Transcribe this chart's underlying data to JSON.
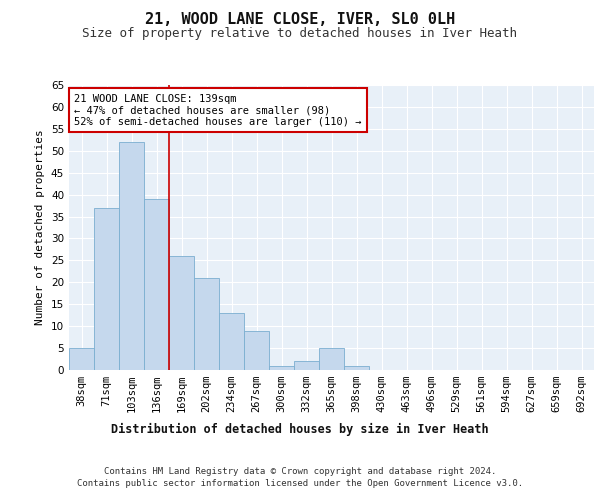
{
  "title": "21, WOOD LANE CLOSE, IVER, SL0 0LH",
  "subtitle": "Size of property relative to detached houses in Iver Heath",
  "xlabel_dist": "Distribution of detached houses by size in Iver Heath",
  "ylabel": "Number of detached properties",
  "footer_line1": "Contains HM Land Registry data © Crown copyright and database right 2024.",
  "footer_line2": "Contains public sector information licensed under the Open Government Licence v3.0.",
  "bar_labels": [
    "38sqm",
    "71sqm",
    "103sqm",
    "136sqm",
    "169sqm",
    "202sqm",
    "234sqm",
    "267sqm",
    "300sqm",
    "332sqm",
    "365sqm",
    "398sqm",
    "430sqm",
    "463sqm",
    "496sqm",
    "529sqm",
    "561sqm",
    "594sqm",
    "627sqm",
    "659sqm",
    "692sqm"
  ],
  "bar_values": [
    5,
    37,
    52,
    39,
    26,
    21,
    13,
    9,
    1,
    2,
    5,
    1,
    0,
    0,
    0,
    0,
    0,
    0,
    0,
    0,
    0
  ],
  "bar_color": "#c5d8ed",
  "bar_edge_color": "#7aaed0",
  "background_color": "#e8f0f8",
  "vline_x_index": 3,
  "vline_color": "#cc0000",
  "annotation_text": "21 WOOD LANE CLOSE: 139sqm\n← 47% of detached houses are smaller (98)\n52% of semi-detached houses are larger (110) →",
  "annotation_box_color": "#cc0000",
  "ylim": [
    0,
    65
  ],
  "yticks": [
    0,
    5,
    10,
    15,
    20,
    25,
    30,
    35,
    40,
    45,
    50,
    55,
    60,
    65
  ],
  "grid_color": "#ffffff",
  "title_fontsize": 11,
  "subtitle_fontsize": 9,
  "ylabel_fontsize": 8,
  "tick_fontsize": 7.5,
  "xlabel_dist_fontsize": 8.5,
  "footer_fontsize": 6.5,
  "annotation_fontsize": 7.5
}
